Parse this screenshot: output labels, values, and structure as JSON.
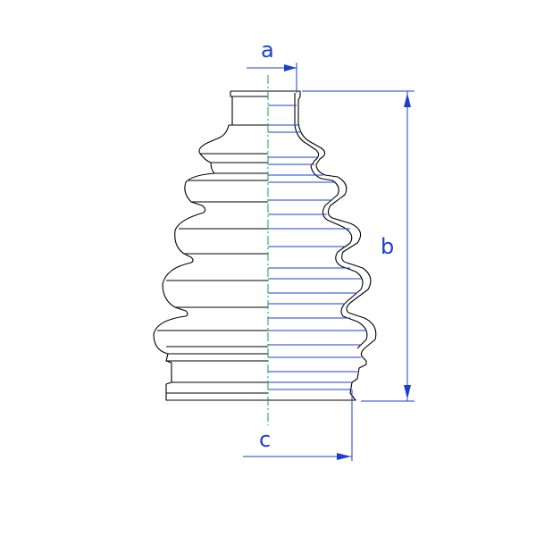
{
  "drawing": {
    "dimension_labels": {
      "a": "a",
      "b": "b",
      "c": "c"
    },
    "colors": {
      "outline": "#000000",
      "dimension": "#1a3fd0",
      "centerline": "#1a9a5a",
      "background": "#ffffff"
    }
  }
}
